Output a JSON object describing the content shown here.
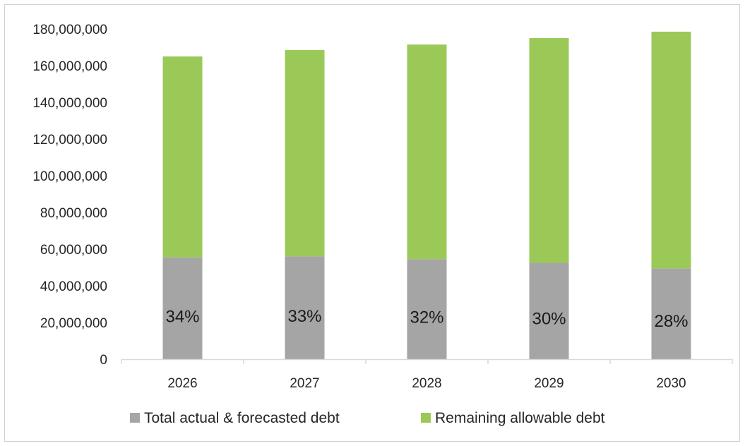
{
  "chart_data": {
    "type": "bar",
    "stacked": true,
    "categories": [
      "2026",
      "2027",
      "2028",
      "2029",
      "2030"
    ],
    "series": [
      {
        "name": "Total actual & forecasted debt",
        "color": "#a5a5a5",
        "values": [
          55500000,
          56000000,
          54500000,
          52500000,
          49500000
        ]
      },
      {
        "name": "Remaining allowable debt",
        "color": "#9bc957",
        "values": [
          109500000,
          112500000,
          117000000,
          122500000,
          129000000
        ]
      }
    ],
    "data_labels": [
      "34%",
      "33%",
      "32%",
      "30%",
      "28%"
    ],
    "ylim": [
      0,
      180000000
    ],
    "yticks": [
      "0",
      "20,000,000",
      "40,000,000",
      "60,000,000",
      "80,000,000",
      "100,000,000",
      "120,000,000",
      "140,000,000",
      "160,000,000",
      "180,000,000"
    ],
    "grid": false,
    "legend_position": "bottom",
    "title": "",
    "xlabel": "",
    "ylabel": ""
  }
}
